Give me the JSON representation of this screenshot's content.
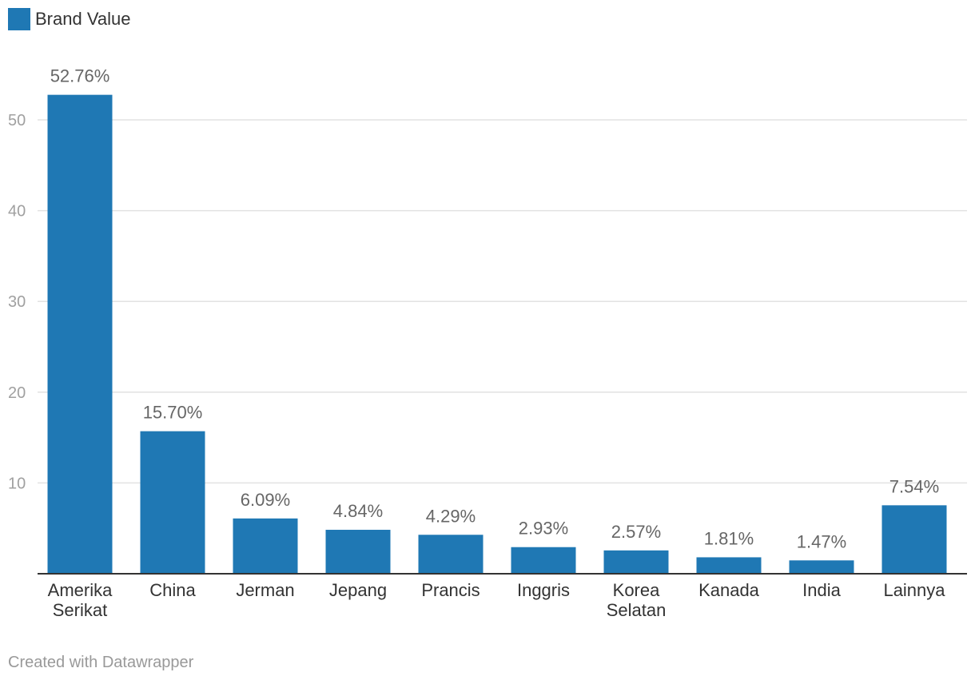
{
  "legend": {
    "label": "Brand Value",
    "color": "#1f78b4"
  },
  "footer": {
    "text": "Created with Datawrapper"
  },
  "chart_data": {
    "type": "bar",
    "categories": [
      "Amerika Serikat",
      "China",
      "Jerman",
      "Jepang",
      "Prancis",
      "Inggris",
      "Korea Selatan",
      "Kanada",
      "India",
      "Lainnya"
    ],
    "category_lines": [
      [
        "Amerika",
        "Serikat"
      ],
      [
        "China"
      ],
      [
        "Jerman"
      ],
      [
        "Jepang"
      ],
      [
        "Prancis"
      ],
      [
        "Inggris"
      ],
      [
        "Korea",
        "Selatan"
      ],
      [
        "Kanada"
      ],
      [
        "India"
      ],
      [
        "Lainnya"
      ]
    ],
    "series": [
      {
        "name": "Brand Value",
        "values": [
          52.76,
          15.7,
          6.09,
          4.84,
          4.29,
          2.93,
          2.57,
          1.81,
          1.47,
          7.54
        ],
        "labels": [
          "52.76%",
          "15.70%",
          "6.09%",
          "4.84%",
          "4.29%",
          "2.93%",
          "2.57%",
          "1.81%",
          "1.47%",
          "7.54%"
        ],
        "color": "#1f78b4"
      }
    ],
    "y_ticks": [
      10,
      20,
      30,
      40,
      50
    ],
    "ylim": [
      0,
      60
    ],
    "grid": true,
    "legend_position": "top-left"
  }
}
